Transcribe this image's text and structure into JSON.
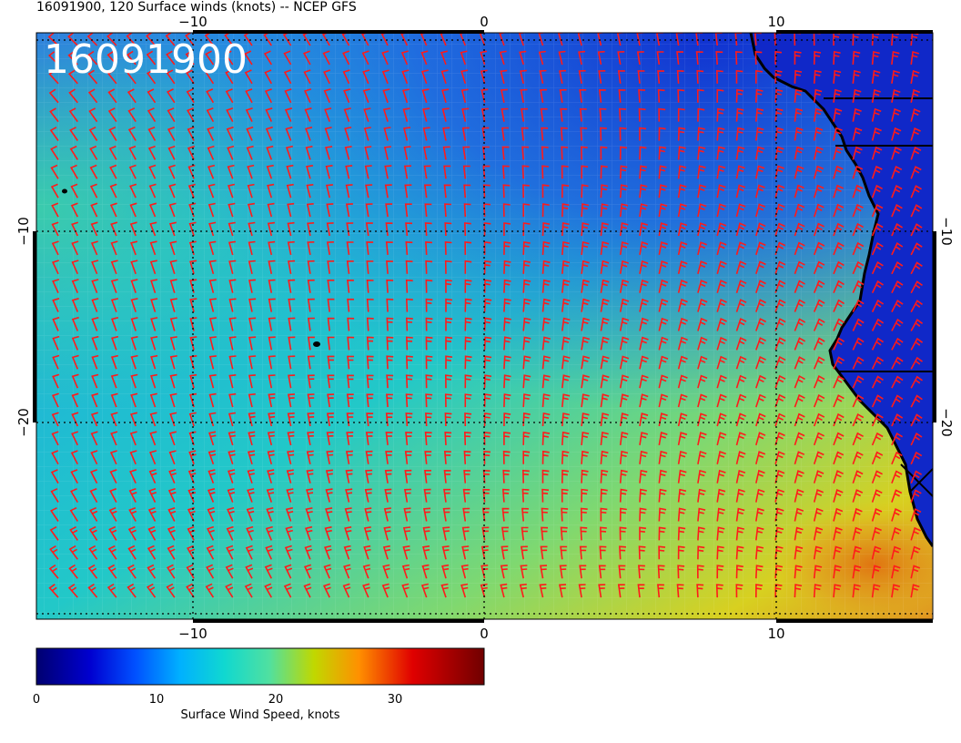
{
  "title": "16091900, 120 Surface winds (knots) -- NCEP GFS",
  "date_stamp": "16091900",
  "axes": {
    "x_ticks": [
      "−10",
      "0",
      "10"
    ],
    "y_ticks_left": [
      "−10",
      "−20"
    ],
    "y_ticks_right": [
      "−10",
      "−20"
    ]
  },
  "colorbar": {
    "label": "Surface Wind Speed, knots",
    "ticks": [
      "0",
      "10",
      "20",
      "30"
    ],
    "range": [
      0,
      37
    ],
    "colormap": [
      "#000080",
      "#0000ff",
      "#0080ff",
      "#00d0d8",
      "#40e0b0",
      "#c8d000",
      "#ff8000",
      "#e00000",
      "#800000"
    ]
  },
  "colors": {
    "barb": "#ff1a1a",
    "land": "#0a23c8",
    "coast": "#000000",
    "grid": "#000000"
  }
}
